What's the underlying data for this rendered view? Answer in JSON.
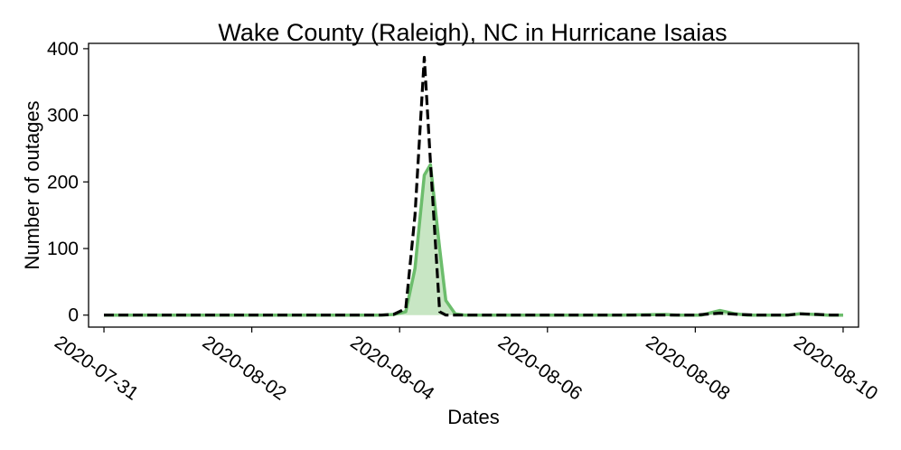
{
  "chart_data": {
    "type": "line",
    "title": "Wake County (Raleigh), NC in Hurricane Isaias",
    "xlabel": "Dates",
    "ylabel": "Number of outages",
    "x_ticks": [
      "2020-07-31",
      "2020-08-02",
      "2020-08-04",
      "2020-08-06",
      "2020-08-08",
      "2020-08-10"
    ],
    "y_ticks": [
      0,
      100,
      200,
      300,
      400
    ],
    "xlim": [
      "2020-07-30T19:00",
      "2020-08-10T05:00"
    ],
    "ylim": [
      -18,
      408
    ],
    "grid": false,
    "legend": "none",
    "series": [
      {
        "style": "green solid line with light green fill to zero",
        "color": "#6cbd6c",
        "fill_color": "#c8e6c4",
        "points": [
          [
            "2020-07-31T00:00",
            0
          ],
          [
            "2020-08-01T00:00",
            0
          ],
          [
            "2020-08-02T00:00",
            0
          ],
          [
            "2020-08-03T00:00",
            0
          ],
          [
            "2020-08-03T18:00",
            0
          ],
          [
            "2020-08-03T22:00",
            1
          ],
          [
            "2020-08-04T02:00",
            5
          ],
          [
            "2020-08-04T05:00",
            70
          ],
          [
            "2020-08-04T08:00",
            210
          ],
          [
            "2020-08-04T10:00",
            226
          ],
          [
            "2020-08-04T13:00",
            100
          ],
          [
            "2020-08-04T15:00",
            22
          ],
          [
            "2020-08-04T18:00",
            2
          ],
          [
            "2020-08-04T21:00",
            0
          ],
          [
            "2020-08-06T00:00",
            0
          ],
          [
            "2020-08-07T00:00",
            0
          ],
          [
            "2020-08-07T14:00",
            1
          ],
          [
            "2020-08-07T18:00",
            0
          ],
          [
            "2020-08-08T02:00",
            0
          ],
          [
            "2020-08-08T08:00",
            7
          ],
          [
            "2020-08-08T13:00",
            2
          ],
          [
            "2020-08-08T17:00",
            0
          ],
          [
            "2020-08-09T06:00",
            0
          ],
          [
            "2020-08-09T10:00",
            2
          ],
          [
            "2020-08-09T15:00",
            1
          ],
          [
            "2020-08-09T19:00",
            0
          ],
          [
            "2020-08-10T00:00",
            0
          ]
        ]
      },
      {
        "style": "black dashed line",
        "color": "#000000",
        "points": [
          [
            "2020-07-31T00:00",
            0
          ],
          [
            "2020-08-01T00:00",
            0
          ],
          [
            "2020-08-02T00:00",
            0
          ],
          [
            "2020-08-03T00:00",
            0
          ],
          [
            "2020-08-03T18:00",
            0
          ],
          [
            "2020-08-03T22:00",
            1
          ],
          [
            "2020-08-04T02:00",
            10
          ],
          [
            "2020-08-04T05:00",
            150
          ],
          [
            "2020-08-04T08:00",
            387
          ],
          [
            "2020-08-04T10:00",
            230
          ],
          [
            "2020-08-04T13:00",
            5
          ],
          [
            "2020-08-04T15:00",
            0
          ],
          [
            "2020-08-06T00:00",
            0
          ],
          [
            "2020-08-07T00:00",
            0
          ],
          [
            "2020-08-08T00:00",
            0
          ],
          [
            "2020-08-08T08:00",
            3
          ],
          [
            "2020-08-08T14:00",
            1
          ],
          [
            "2020-08-08T20:00",
            0
          ],
          [
            "2020-08-09T06:00",
            0
          ],
          [
            "2020-08-09T10:00",
            2
          ],
          [
            "2020-08-09T16:00",
            1
          ],
          [
            "2020-08-09T20:00",
            0
          ],
          [
            "2020-08-10T00:00",
            0
          ]
        ]
      }
    ]
  }
}
